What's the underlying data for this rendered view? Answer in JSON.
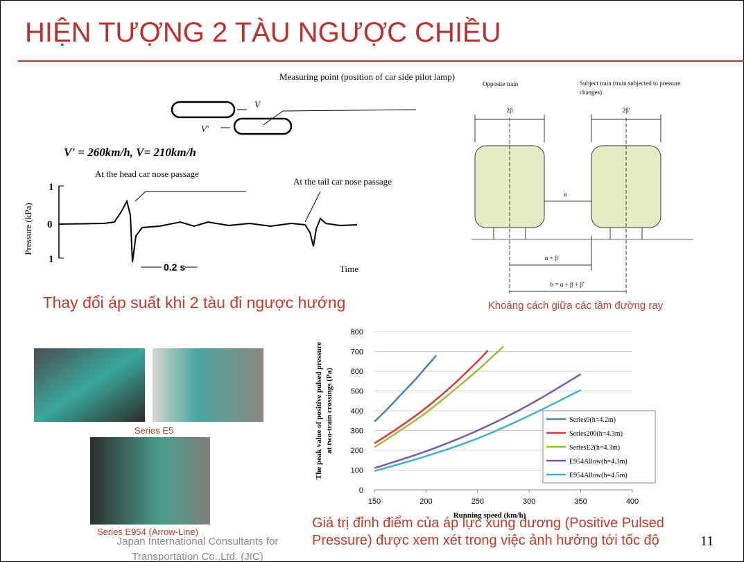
{
  "slide": {
    "title": "HIỆN TƯỢNG 2 TÀU NGƯỢC CHIỀU",
    "pressure_diagram": {
      "measuring_point": "Measuring point (position of car side pilot lamp)",
      "v": "V",
      "v_prime": "V'",
      "speeds": "V' = 260km/h, V= 210km/h",
      "head_note": "At the head car nose passage",
      "tail_note": "At the tail car nose passage",
      "y_label": "Pressure (kPa)",
      "y_top": "1",
      "y_mid": "0",
      "y_bottom": "1",
      "scale": "0.2 s",
      "x_label": "Time",
      "caption": "Thay đổi áp suất khi 2 tàu đi ngược hướng"
    },
    "track_diagram": {
      "opposite": "Opposite train",
      "subject": "Subject train (train subjected to pressure changes)",
      "width_left": "2β",
      "width_right": "2β'",
      "gap": "α",
      "half": "α + β",
      "total": "b = α + β + β'",
      "caption": "Khoảng cách giữa các tâm đường ray"
    },
    "photos": {
      "caption_e5": "Series E5",
      "caption_e954": "Series E954 (Arrow-Line)"
    },
    "footer": "Japan International Consultants for Transportation Co.,Ltd. (JIC)",
    "chart_caption": "Giá trị đỉnh điểm của áp lực xung dương (Positive Pulsed Pressure) được xem xét trong việc ảnh hưởng tới tốc độ",
    "page_number": "11"
  },
  "chart_data": {
    "type": "line",
    "x_label": "Running speed (km/h)",
    "y_label": "The peak value of positive pulsed pressure at two-train crossings (Pa)",
    "xlim": [
      150,
      400
    ],
    "xticks": [
      150,
      200,
      250,
      300,
      350,
      400
    ],
    "ylim": [
      0,
      800
    ],
    "yticks": [
      0,
      100,
      200,
      300,
      400,
      500,
      600,
      700,
      800
    ],
    "grid": true,
    "legend": "lower right",
    "series": [
      {
        "name": "Series0(h=4.2m)",
        "color": "#4a7ebb",
        "x": [
          150,
          160,
          170,
          180,
          190,
          200,
          210
        ],
        "values": [
          345,
          395,
          450,
          505,
          560,
          620,
          680
        ]
      },
      {
        "name": "Series200(h=4.3m)",
        "color": "#d9363e",
        "x": [
          150,
          175,
          200,
          225,
          250,
          260
        ],
        "values": [
          235,
          320,
          415,
          525,
          650,
          705
        ]
      },
      {
        "name": "SeriesE2(h=4.3m)",
        "color": "#9bbb3a",
        "x": [
          150,
          175,
          200,
          225,
          250,
          275
        ],
        "values": [
          215,
          300,
          390,
          495,
          605,
          725
        ]
      },
      {
        "name": "E954Allow(h=4.3m)",
        "color": "#7a58a6",
        "x": [
          150,
          200,
          250,
          300,
          350
        ],
        "values": [
          110,
          195,
          300,
          430,
          585
        ]
      },
      {
        "name": "E954Allow(h=4.5m)",
        "color": "#3fb0c9",
        "x": [
          150,
          200,
          250,
          300,
          350
        ],
        "values": [
          95,
          170,
          260,
          375,
          505
        ]
      }
    ]
  }
}
